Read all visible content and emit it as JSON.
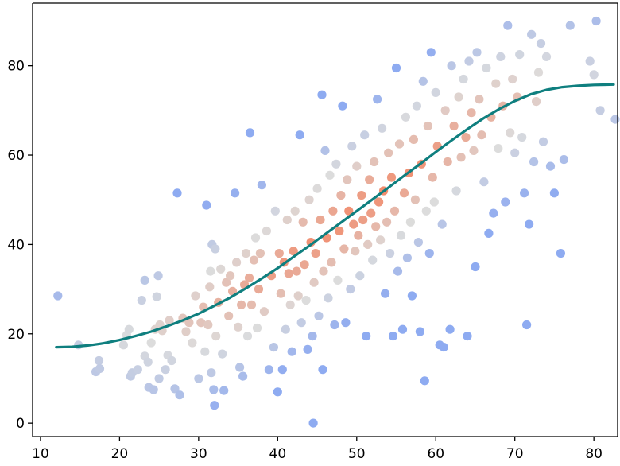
{
  "chart_data": {
    "type": "scatter",
    "title": "",
    "xlabel": "",
    "ylabel": "",
    "xlim": [
      9,
      83
    ],
    "ylim": [
      -3,
      94
    ],
    "grid": false,
    "legend": "none",
    "x_ticks": [
      10,
      20,
      30,
      40,
      50,
      60,
      70,
      80
    ],
    "x_tick_labels": [
      "10",
      "20",
      "30",
      "40",
      "50",
      "60",
      "70",
      "80"
    ],
    "y_ticks": [
      0,
      20,
      40,
      60,
      80
    ],
    "y_tick_labels": [
      "0",
      "20",
      "40",
      "60",
      "80"
    ],
    "colors": {
      "point_far": "#8aa8f2",
      "point_mid": "#dcdcdc",
      "point_near": "#f28a6a",
      "curve": "#0f7f7f",
      "axis": "#000000"
    },
    "series": [
      {
        "type": "scatter",
        "points": [
          [
            12.2,
            28.5
          ],
          [
            14.8,
            17.5
          ],
          [
            17.0,
            11.5
          ],
          [
            17.4,
            14.0
          ],
          [
            17.5,
            12.2
          ],
          [
            20.5,
            17.5
          ],
          [
            20.9,
            19.7
          ],
          [
            21.2,
            21.0
          ],
          [
            21.4,
            10.5
          ],
          [
            21.6,
            11.3
          ],
          [
            22.3,
            12.0
          ],
          [
            22.8,
            27.5
          ],
          [
            23.2,
            32.0
          ],
          [
            23.2,
            15.0
          ],
          [
            23.6,
            13.7
          ],
          [
            23.7,
            8.0
          ],
          [
            24.0,
            18.0
          ],
          [
            24.3,
            7.5
          ],
          [
            24.5,
            21.0
          ],
          [
            24.7,
            28.3
          ],
          [
            24.9,
            33.0
          ],
          [
            25.0,
            10.0
          ],
          [
            25.1,
            22.0
          ],
          [
            25.4,
            20.7
          ],
          [
            25.8,
            12.0
          ],
          [
            26.1,
            15.2
          ],
          [
            26.3,
            23.0
          ],
          [
            26.6,
            14.0
          ],
          [
            27.0,
            7.7
          ],
          [
            27.3,
            51.5
          ],
          [
            27.6,
            6.3
          ],
          [
            28.0,
            23.5
          ],
          [
            28.4,
            20.5
          ],
          [
            28.8,
            22.5
          ],
          [
            29.2,
            18.0
          ],
          [
            29.6,
            28.5
          ],
          [
            30.0,
            10.0
          ],
          [
            30.3,
            22.5
          ],
          [
            30.6,
            26.0
          ],
          [
            30.8,
            16.0
          ],
          [
            31.0,
            48.8
          ],
          [
            31.2,
            22.0
          ],
          [
            31.4,
            30.5
          ],
          [
            31.5,
            34.0
          ],
          [
            31.6,
            11.3
          ],
          [
            31.7,
            40.0
          ],
          [
            31.9,
            7.5
          ],
          [
            32.0,
            4.0
          ],
          [
            32.1,
            39.0
          ],
          [
            32.2,
            19.5
          ],
          [
            32.5,
            27.0
          ],
          [
            32.8,
            34.5
          ],
          [
            33.0,
            15.5
          ],
          [
            33.2,
            7.3
          ],
          [
            33.5,
            31.5
          ],
          [
            33.8,
            24.0
          ],
          [
            34.0,
            33.0
          ],
          [
            34.3,
            29.5
          ],
          [
            34.6,
            51.5
          ],
          [
            34.8,
            36.0
          ],
          [
            35.0,
            21.5
          ],
          [
            35.2,
            12.5
          ],
          [
            35.4,
            26.5
          ],
          [
            35.6,
            10.5
          ],
          [
            35.8,
            31.0
          ],
          [
            36.0,
            38.0
          ],
          [
            36.2,
            19.5
          ],
          [
            36.4,
            32.5
          ],
          [
            36.5,
            65.0
          ],
          [
            36.7,
            26.5
          ],
          [
            37.0,
            36.5
          ],
          [
            37.2,
            41.5
          ],
          [
            37.4,
            21.3
          ],
          [
            37.6,
            30.0
          ],
          [
            37.8,
            38.0
          ],
          [
            38.0,
            53.3
          ],
          [
            38.3,
            25.0
          ],
          [
            38.6,
            43.0
          ],
          [
            38.9,
            12.0
          ],
          [
            39.2,
            33.0
          ],
          [
            39.5,
            17.0
          ],
          [
            39.7,
            47.5
          ],
          [
            40.0,
            7.0
          ],
          [
            40.2,
            38.0
          ],
          [
            40.4,
            29.0
          ],
          [
            40.6,
            12.0
          ],
          [
            40.8,
            36.0
          ],
          [
            41.0,
            21.0
          ],
          [
            41.2,
            45.5
          ],
          [
            41.4,
            33.5
          ],
          [
            41.6,
            26.5
          ],
          [
            41.8,
            16.0
          ],
          [
            42.0,
            38.5
          ],
          [
            42.2,
            47.5
          ],
          [
            42.4,
            34.0
          ],
          [
            42.6,
            28.5
          ],
          [
            42.8,
            64.5
          ],
          [
            43.0,
            22.5
          ],
          [
            43.2,
            45.0
          ],
          [
            43.4,
            35.5
          ],
          [
            43.6,
            27.5
          ],
          [
            43.8,
            16.5
          ],
          [
            44.0,
            50.0
          ],
          [
            44.2,
            40.5
          ],
          [
            44.4,
            19.5
          ],
          [
            44.5,
            0.0
          ],
          [
            44.6,
            31.5
          ],
          [
            44.8,
            38.0
          ],
          [
            45.0,
            52.5
          ],
          [
            45.2,
            24.0
          ],
          [
            45.4,
            45.5
          ],
          [
            45.6,
            73.5
          ],
          [
            45.7,
            12.0
          ],
          [
            45.8,
            34.0
          ],
          [
            46.0,
            61.0
          ],
          [
            46.2,
            41.5
          ],
          [
            46.4,
            28.0
          ],
          [
            46.6,
            55.5
          ],
          [
            46.8,
            36.0
          ],
          [
            47.0,
            47.5
          ],
          [
            47.2,
            22.0
          ],
          [
            47.4,
            58.0
          ],
          [
            47.6,
            32.0
          ],
          [
            47.8,
            43.0
          ],
          [
            48.0,
            51.0
          ],
          [
            48.2,
            71.0
          ],
          [
            48.4,
            39.0
          ],
          [
            48.6,
            22.5
          ],
          [
            48.8,
            54.5
          ],
          [
            49.0,
            47.5
          ],
          [
            49.2,
            30.0
          ],
          [
            49.4,
            62.0
          ],
          [
            49.6,
            44.5
          ],
          [
            49.8,
            38.5
          ],
          [
            50.0,
            57.5
          ],
          [
            50.2,
            42.0
          ],
          [
            50.4,
            33.0
          ],
          [
            50.6,
            51.0
          ],
          [
            50.8,
            45.5
          ],
          [
            51.0,
            64.5
          ],
          [
            51.2,
            19.5
          ],
          [
            51.4,
            40.0
          ],
          [
            51.6,
            54.5
          ],
          [
            51.8,
            47.0
          ],
          [
            52.0,
            36.5
          ],
          [
            52.2,
            58.5
          ],
          [
            52.4,
            44.0
          ],
          [
            52.6,
            72.5
          ],
          [
            52.8,
            49.5
          ],
          [
            53.0,
            41.0
          ],
          [
            53.2,
            66.0
          ],
          [
            53.4,
            52.0
          ],
          [
            53.6,
            29.0
          ],
          [
            53.8,
            45.0
          ],
          [
            54.0,
            60.5
          ],
          [
            54.2,
            38.0
          ],
          [
            54.4,
            55.0
          ],
          [
            54.6,
            19.5
          ],
          [
            54.8,
            47.5
          ],
          [
            55.0,
            79.5
          ],
          [
            55.2,
            34.0
          ],
          [
            55.4,
            62.5
          ],
          [
            55.6,
            42.0
          ],
          [
            55.8,
            21.0
          ],
          [
            56.0,
            51.5
          ],
          [
            56.2,
            68.5
          ],
          [
            56.4,
            37.0
          ],
          [
            56.6,
            56.0
          ],
          [
            56.8,
            45.0
          ],
          [
            57.0,
            28.5
          ],
          [
            57.2,
            63.5
          ],
          [
            57.4,
            50.0
          ],
          [
            57.6,
            71.0
          ],
          [
            57.8,
            40.5
          ],
          [
            58.0,
            20.5
          ],
          [
            58.2,
            58.0
          ],
          [
            58.4,
            76.5
          ],
          [
            58.6,
            9.5
          ],
          [
            58.8,
            47.5
          ],
          [
            59.0,
            66.5
          ],
          [
            59.2,
            38.0
          ],
          [
            59.4,
            83.0
          ],
          [
            59.6,
            55.0
          ],
          [
            59.8,
            49.5
          ],
          [
            60.0,
            74.0
          ],
          [
            60.2,
            62.0
          ],
          [
            60.5,
            17.5
          ],
          [
            60.8,
            44.5
          ],
          [
            61.0,
            17.0
          ],
          [
            61.2,
            70.0
          ],
          [
            61.5,
            58.5
          ],
          [
            61.8,
            21.0
          ],
          [
            62.0,
            80.0
          ],
          [
            62.3,
            66.5
          ],
          [
            62.6,
            52.0
          ],
          [
            62.9,
            73.0
          ],
          [
            63.2,
            59.5
          ],
          [
            63.5,
            77.0
          ],
          [
            63.8,
            64.0
          ],
          [
            64.0,
            19.5
          ],
          [
            64.2,
            81.0
          ],
          [
            64.5,
            69.5
          ],
          [
            64.8,
            61.0
          ],
          [
            65.0,
            35.0
          ],
          [
            65.2,
            83.0
          ],
          [
            65.5,
            72.5
          ],
          [
            65.8,
            64.5
          ],
          [
            66.1,
            54.0
          ],
          [
            66.4,
            79.5
          ],
          [
            66.7,
            42.5
          ],
          [
            67.0,
            68.5
          ],
          [
            67.3,
            47.0
          ],
          [
            67.6,
            76.0
          ],
          [
            67.9,
            61.5
          ],
          [
            68.2,
            82.0
          ],
          [
            68.5,
            71.0
          ],
          [
            68.8,
            49.5
          ],
          [
            69.1,
            89.0
          ],
          [
            69.4,
            65.0
          ],
          [
            69.7,
            77.0
          ],
          [
            70.0,
            60.5
          ],
          [
            70.3,
            73.0
          ],
          [
            70.6,
            82.5
          ],
          [
            70.9,
            64.0
          ],
          [
            71.2,
            51.5
          ],
          [
            71.5,
            22.0
          ],
          [
            71.8,
            44.5
          ],
          [
            72.1,
            87.0
          ],
          [
            72.4,
            58.5
          ],
          [
            72.7,
            72.0
          ],
          [
            73.0,
            78.5
          ],
          [
            73.3,
            85.0
          ],
          [
            73.6,
            63.0
          ],
          [
            74.0,
            82.0
          ],
          [
            74.5,
            57.5
          ],
          [
            75.0,
            51.5
          ],
          [
            75.8,
            38.0
          ],
          [
            76.2,
            59.0
          ],
          [
            77.0,
            89.0
          ],
          [
            79.5,
            81.0
          ],
          [
            80.0,
            78.0
          ],
          [
            80.3,
            90.0
          ],
          [
            80.8,
            70.0
          ],
          [
            82.7,
            68.0
          ]
        ]
      },
      {
        "type": "line",
        "points": [
          [
            12.0,
            17.0
          ],
          [
            14.0,
            17.1
          ],
          [
            16.0,
            17.4
          ],
          [
            18.0,
            17.9
          ],
          [
            20.0,
            18.6
          ],
          [
            22.0,
            19.5
          ],
          [
            24.0,
            20.5
          ],
          [
            26.0,
            21.7
          ],
          [
            28.0,
            23.0
          ],
          [
            30.0,
            24.5
          ],
          [
            32.0,
            26.3
          ],
          [
            34.0,
            28.1
          ],
          [
            36.0,
            30.2
          ],
          [
            38.0,
            32.4
          ],
          [
            40.0,
            34.7
          ],
          [
            42.0,
            37.2
          ],
          [
            44.0,
            39.7
          ],
          [
            46.0,
            42.3
          ],
          [
            48.0,
            44.9
          ],
          [
            50.0,
            47.5
          ],
          [
            52.0,
            50.1
          ],
          [
            54.0,
            52.7
          ],
          [
            56.0,
            55.4
          ],
          [
            58.0,
            58.0
          ],
          [
            60.0,
            60.7
          ],
          [
            62.0,
            63.3
          ],
          [
            64.0,
            65.8
          ],
          [
            66.0,
            68.2
          ],
          [
            68.0,
            70.3
          ],
          [
            70.0,
            72.1
          ],
          [
            72.0,
            73.6
          ],
          [
            74.0,
            74.6
          ],
          [
            76.0,
            75.2
          ],
          [
            78.0,
            75.5
          ],
          [
            80.0,
            75.7
          ],
          [
            82.5,
            75.8
          ]
        ]
      }
    ]
  }
}
